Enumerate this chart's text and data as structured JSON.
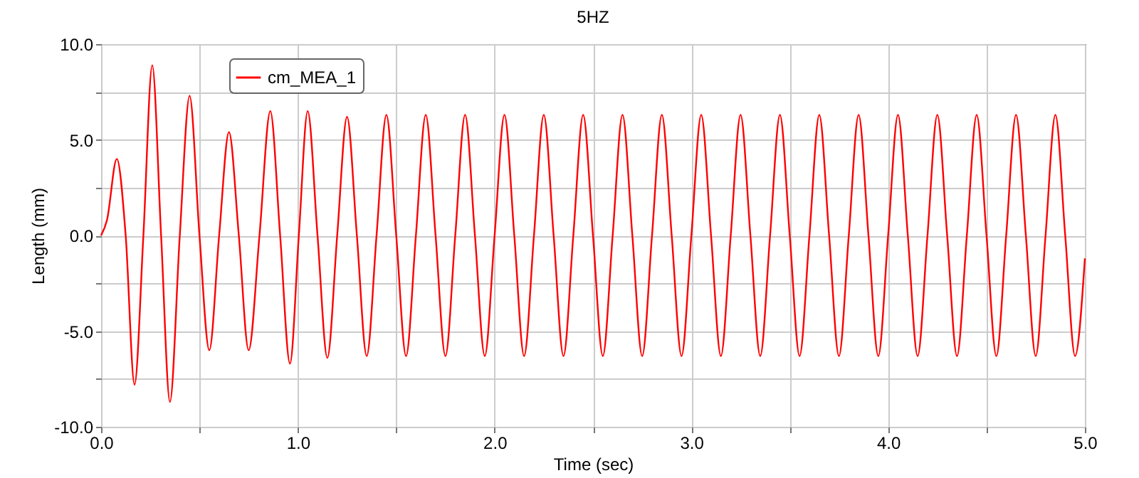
{
  "chart_data": {
    "type": "line",
    "title": "5HZ",
    "xlabel": "Time (sec)",
    "ylabel": "Length (mm)",
    "xlim": [
      0,
      5
    ],
    "ylim": [
      -10,
      10
    ],
    "xticks": [
      {
        "value": 0,
        "label": "0.0"
      },
      {
        "value": 0.5,
        "label": null
      },
      {
        "value": 1,
        "label": "1.0"
      },
      {
        "value": 1.5,
        "label": null
      },
      {
        "value": 2,
        "label": "2.0"
      },
      {
        "value": 2.5,
        "label": null
      },
      {
        "value": 3,
        "label": "3.0"
      },
      {
        "value": 3.5,
        "label": null
      },
      {
        "value": 4,
        "label": "4.0"
      },
      {
        "value": 4.5,
        "label": null
      },
      {
        "value": 5,
        "label": "5.0"
      }
    ],
    "yticks": [
      {
        "value": -10,
        "label": "-10.0"
      },
      {
        "value": -7.5,
        "label": null
      },
      {
        "value": -5,
        "label": "-5.0"
      },
      {
        "value": -2.5,
        "label": null
      },
      {
        "value": 0,
        "label": "0.0"
      },
      {
        "value": 2.5,
        "label": null
      },
      {
        "value": 5,
        "label": "5.0"
      },
      {
        "value": 7.5,
        "label": null
      },
      {
        "value": 10,
        "label": "10.0"
      }
    ],
    "grid": true,
    "legend": "top left",
    "series": [
      {
        "name": "cm_MEA_1",
        "color": "#ff0000",
        "x": [
          0,
          0.03,
          0.08,
          0.125,
          0.17,
          0.215,
          0.26,
          0.305,
          0.35,
          0.4,
          0.45,
          0.5,
          0.55,
          0.6,
          0.65,
          0.7,
          0.75,
          0.805,
          0.86,
          0.91,
          0.96,
          1.005,
          1.05,
          1.1,
          1.15,
          1.2,
          1.25,
          1.3,
          1.35,
          1.4,
          1.45,
          1.5,
          1.55,
          1.6,
          1.65,
          1.7,
          1.75,
          1.8,
          1.85,
          1.9,
          1.95,
          2,
          2.05,
          2.1,
          2.15,
          2.2,
          2.25,
          2.3,
          2.35,
          2.4,
          2.45,
          2.5,
          2.55,
          2.6,
          2.65,
          2.7,
          2.75,
          2.8,
          2.85,
          2.9,
          2.95,
          3,
          3.05,
          3.1,
          3.15,
          3.2,
          3.25,
          3.3,
          3.35,
          3.4,
          3.45,
          3.5,
          3.55,
          3.6,
          3.65,
          3.7,
          3.75,
          3.8,
          3.85,
          3.9,
          3.95,
          4,
          4.05,
          4.1,
          4.15,
          4.2,
          4.25,
          4.3,
          4.35,
          4.4,
          4.45,
          4.5,
          4.55,
          4.6,
          4.65,
          4.7,
          4.75,
          4.8,
          4.85,
          4.9,
          4.95,
          5
        ],
        "values": [
          0,
          0.8,
          4.0,
          0,
          -7.8,
          0,
          8.9,
          0,
          -8.7,
          0,
          7.3,
          0,
          -6.0,
          0,
          5.4,
          0,
          -6.0,
          0,
          6.5,
          0,
          -6.7,
          0,
          6.5,
          0,
          -6.4,
          0,
          6.2,
          0,
          -6.3,
          0,
          6.3,
          0,
          -6.3,
          0,
          6.3,
          0,
          -6.3,
          0,
          6.3,
          0,
          -6.3,
          0,
          6.3,
          0,
          -6.3,
          0,
          6.3,
          0,
          -6.3,
          0,
          6.3,
          0,
          -6.3,
          0,
          6.3,
          0,
          -6.3,
          0,
          6.3,
          0,
          -6.3,
          0,
          6.3,
          0,
          -6.3,
          0,
          6.3,
          0,
          -6.3,
          0,
          6.3,
          0,
          -6.3,
          0,
          6.3,
          0,
          -6.3,
          0,
          6.3,
          0,
          -6.3,
          0,
          6.3,
          0,
          -6.3,
          0,
          6.3,
          0,
          -6.3,
          0,
          6.3,
          0,
          -6.3,
          0,
          6.3,
          0,
          -6.3,
          0,
          6.3,
          0,
          -6.3,
          -1.2
        ]
      }
    ]
  }
}
